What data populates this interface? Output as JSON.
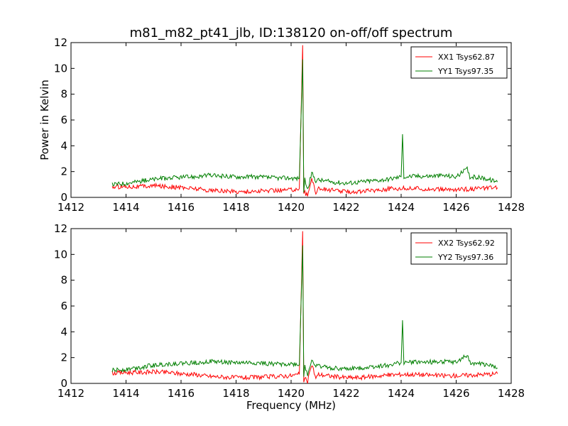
{
  "chart_data": {
    "title": "m81_m82_pt41_jlb, ID:138120 on-off/off spectrum",
    "xlabel": "Frequency (MHz)",
    "ylabel": "Power in Kelvin",
    "panels": [
      {
        "type": "line",
        "xlim": [
          1412,
          1428
        ],
        "ylim": [
          0,
          12
        ],
        "xticks": [
          1412,
          1414,
          1416,
          1418,
          1420,
          1422,
          1424,
          1426,
          1428
        ],
        "yticks": [
          0,
          2,
          4,
          6,
          8,
          10,
          12
        ],
        "ylabel": "Power in Kelvin",
        "xlabel": "",
        "legend_position": "top-right",
        "grid": false,
        "series": [
          {
            "name": "XX1 Tsys62.87",
            "color": "#ff0000",
            "x": [
              1413.5,
              1414.0,
              1414.5,
              1415.0,
              1415.5,
              1416.0,
              1416.5,
              1417.0,
              1417.5,
              1418.0,
              1418.5,
              1419.0,
              1419.5,
              1420.0,
              1420.3,
              1420.42,
              1420.46,
              1420.5,
              1420.6,
              1420.75,
              1420.9,
              1421.0,
              1421.5,
              1422.0,
              1422.5,
              1423.0,
              1423.5,
              1424.0,
              1424.5,
              1425.0,
              1425.5,
              1426.0,
              1426.5,
              1427.0,
              1427.5
            ],
            "y": [
              0.8,
              0.85,
              0.85,
              0.9,
              0.85,
              0.75,
              0.7,
              0.55,
              0.5,
              0.45,
              0.45,
              0.5,
              0.55,
              0.6,
              0.7,
              11.8,
              0.2,
              0.4,
              0.1,
              1.5,
              0.4,
              0.7,
              0.55,
              0.45,
              0.45,
              0.55,
              0.65,
              0.7,
              0.7,
              0.65,
              0.6,
              0.6,
              0.65,
              0.7,
              0.75
            ]
          },
          {
            "name": "YY1 Tsys97.35",
            "color": "#007f00",
            "x": [
              1413.5,
              1414.0,
              1414.5,
              1415.0,
              1415.5,
              1416.0,
              1416.5,
              1417.0,
              1417.5,
              1418.0,
              1418.5,
              1419.0,
              1419.5,
              1420.0,
              1420.3,
              1420.42,
              1420.46,
              1420.5,
              1420.6,
              1420.75,
              1420.9,
              1421.0,
              1421.5,
              1422.0,
              1422.5,
              1423.0,
              1423.5,
              1424.0,
              1424.05,
              1424.1,
              1424.5,
              1425.0,
              1425.5,
              1426.0,
              1426.4,
              1426.5,
              1427.0,
              1427.5
            ],
            "y": [
              1.0,
              1.1,
              1.25,
              1.4,
              1.5,
              1.55,
              1.6,
              1.7,
              1.65,
              1.6,
              1.6,
              1.55,
              1.5,
              1.5,
              1.45,
              10.7,
              0.5,
              1.4,
              0.6,
              1.9,
              1.3,
              1.35,
              1.2,
              1.1,
              1.2,
              1.3,
              1.4,
              1.6,
              4.9,
              1.6,
              1.65,
              1.65,
              1.7,
              1.6,
              2.2,
              1.6,
              1.5,
              1.2
            ]
          }
        ]
      },
      {
        "type": "line",
        "xlim": [
          1412,
          1428
        ],
        "ylim": [
          0,
          12
        ],
        "xticks": [
          1412,
          1414,
          1416,
          1418,
          1420,
          1422,
          1424,
          1426,
          1428
        ],
        "yticks": [
          0,
          2,
          4,
          6,
          8,
          10,
          12
        ],
        "ylabel": "",
        "xlabel": "Frequency (MHz)",
        "legend_position": "top-right",
        "grid": false,
        "series": [
          {
            "name": "XX2 Tsys62.92",
            "color": "#ff0000",
            "x": [
              1413.5,
              1414.0,
              1414.5,
              1415.0,
              1415.5,
              1416.0,
              1416.5,
              1417.0,
              1417.5,
              1418.0,
              1418.5,
              1419.0,
              1419.5,
              1420.0,
              1420.3,
              1420.42,
              1420.46,
              1420.5,
              1420.6,
              1420.75,
              1420.9,
              1421.0,
              1421.5,
              1422.0,
              1422.5,
              1423.0,
              1423.5,
              1424.0,
              1424.5,
              1425.0,
              1425.5,
              1426.0,
              1426.5,
              1427.0,
              1427.5
            ],
            "y": [
              0.8,
              0.85,
              0.85,
              0.9,
              0.85,
              0.75,
              0.7,
              0.55,
              0.5,
              0.45,
              0.45,
              0.5,
              0.55,
              0.6,
              0.7,
              11.8,
              0.2,
              0.4,
              0.1,
              1.5,
              0.4,
              0.7,
              0.55,
              0.45,
              0.45,
              0.55,
              0.65,
              0.7,
              0.7,
              0.65,
              0.6,
              0.6,
              0.65,
              0.7,
              0.75
            ]
          },
          {
            "name": "YY2 Tsys97.36",
            "color": "#007f00",
            "x": [
              1413.5,
              1414.0,
              1414.5,
              1415.0,
              1415.5,
              1416.0,
              1416.5,
              1417.0,
              1417.5,
              1418.0,
              1418.5,
              1419.0,
              1419.5,
              1420.0,
              1420.3,
              1420.42,
              1420.46,
              1420.5,
              1420.6,
              1420.75,
              1420.9,
              1421.0,
              1421.5,
              1422.0,
              1422.5,
              1423.0,
              1423.5,
              1424.0,
              1424.05,
              1424.1,
              1424.5,
              1425.0,
              1425.5,
              1426.0,
              1426.4,
              1426.5,
              1427.0,
              1427.5
            ],
            "y": [
              1.0,
              1.1,
              1.25,
              1.4,
              1.5,
              1.55,
              1.6,
              1.7,
              1.65,
              1.6,
              1.6,
              1.55,
              1.5,
              1.5,
              1.45,
              10.7,
              0.5,
              1.4,
              0.6,
              1.9,
              1.3,
              1.35,
              1.2,
              1.1,
              1.2,
              1.3,
              1.4,
              1.6,
              4.9,
              1.6,
              1.65,
              1.65,
              1.7,
              1.6,
              2.2,
              1.6,
              1.5,
              1.2
            ]
          }
        ]
      }
    ]
  }
}
